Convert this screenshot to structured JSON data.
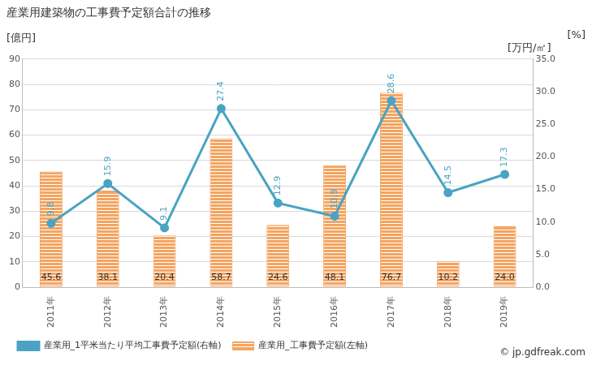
{
  "chart_data": {
    "type": "bar",
    "title": "産業用建築物の工事費予定額合計の推移",
    "y_label": "[億円]",
    "y2_label": "[万円/㎡]",
    "annotations": [
      "[%]",
      "© jp.gdfreak.com"
    ],
    "categories": [
      "2011年",
      "2012年",
      "2013年",
      "2014年",
      "2015年",
      "2016年",
      "2017年",
      "2018年",
      "2019年"
    ],
    "series": [
      {
        "name": "産業用_工事費予定額(左軸)",
        "type": "bar",
        "color": "#f4a460",
        "values": [
          45.6,
          38.1,
          20.4,
          58.7,
          24.6,
          48.1,
          76.7,
          10.2,
          24.0
        ],
        "value_labels": [
          "45.6",
          "38.1",
          "20.4",
          "58.7",
          "24.6",
          "48.1",
          "76.7",
          "10.2",
          "24.0"
        ],
        "data_labels": true
      },
      {
        "name": "産業用_1平米当たり平均工事費予定額(右軸)",
        "type": "line",
        "axis": "y2",
        "color": "#4aa3c3",
        "marker": "circle",
        "line_style": "solid",
        "values": [
          9.8,
          15.9,
          9.1,
          27.4,
          12.9,
          10.9,
          28.6,
          14.5,
          17.3
        ],
        "data_labels": true
      }
    ],
    "ylim": [
      0,
      90
    ],
    "yticks": [
      0,
      10,
      20,
      30,
      40,
      50,
      60,
      70,
      80,
      90
    ],
    "y2lim": [
      0,
      35
    ],
    "y2ticks": [
      {
        "value": 0,
        "label": "0.0"
      },
      {
        "value": 5,
        "label": "5.0"
      },
      {
        "value": 10,
        "label": "10.0"
      },
      {
        "value": 15,
        "label": "15.0"
      },
      {
        "value": 20,
        "label": "20.0"
      },
      {
        "value": 25,
        "label": "25.0"
      },
      {
        "value": 30,
        "label": "30.0"
      },
      {
        "value": 35,
        "label": "35.0"
      }
    ],
    "grid": true,
    "legend": "bottom"
  }
}
